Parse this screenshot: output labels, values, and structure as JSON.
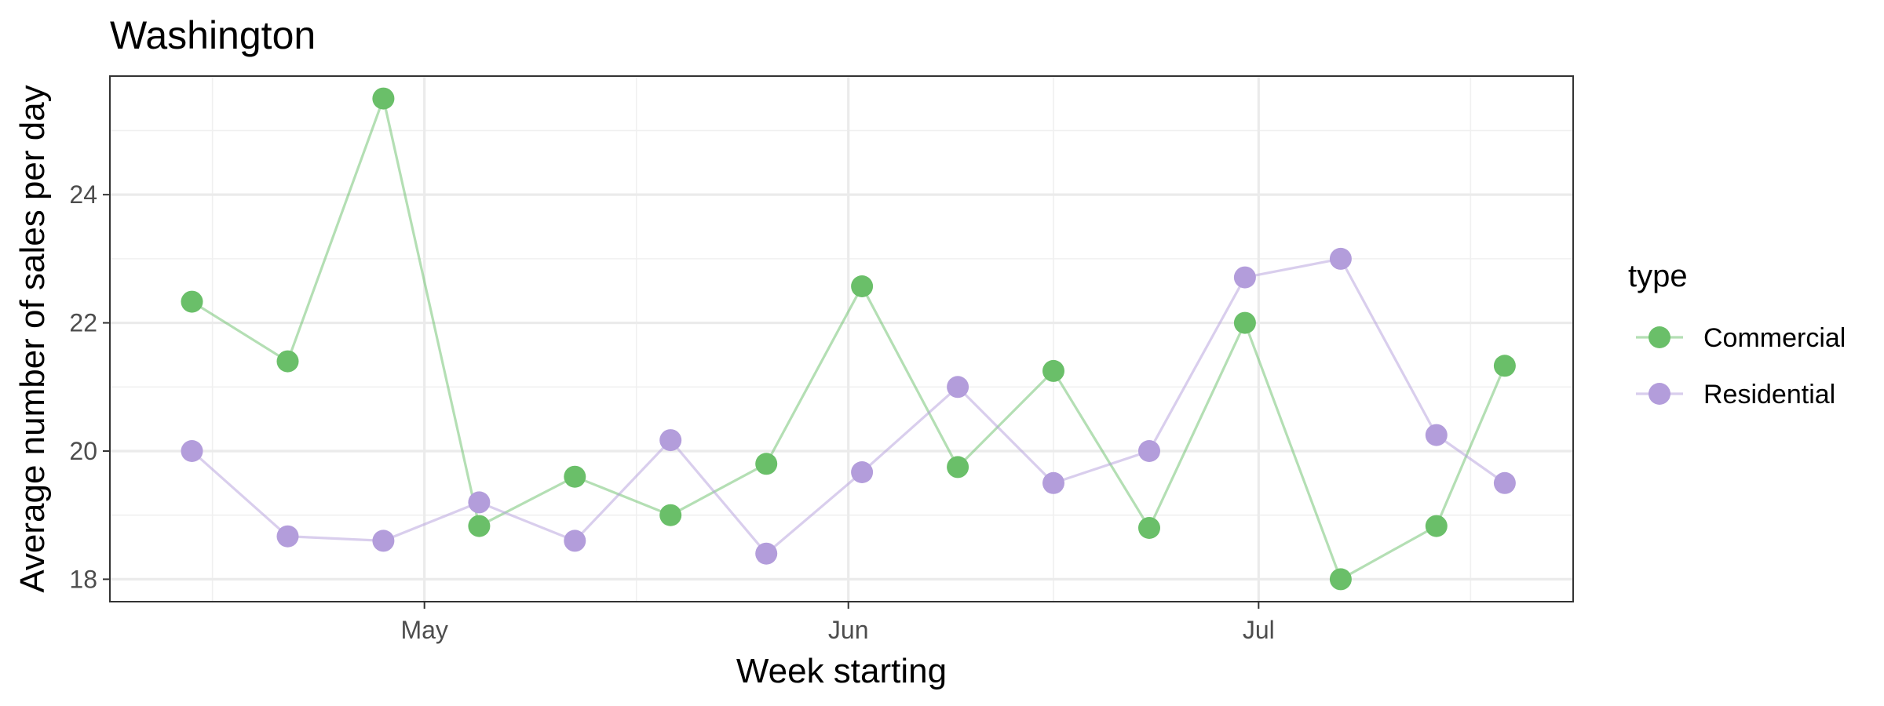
{
  "chart_data": {
    "type": "line",
    "title": "Washington",
    "xlabel": "Week starting",
    "ylabel": "Average number of sales per day",
    "x_ticks": [
      "May",
      "Jun",
      "Jul"
    ],
    "y_ticks": [
      "18",
      "20",
      "22",
      "24"
    ],
    "x_tick_dates": [
      "2019-05-01",
      "2019-06-01",
      "2019-07-01"
    ],
    "xlim": [
      "2019-04-08",
      "2019-07-24"
    ],
    "ylim": [
      17.65,
      25.85
    ],
    "grid": true,
    "legend_title": "type",
    "legend_position": "right",
    "series": [
      {
        "name": "Commercial",
        "color": "#6abf69",
        "x": [
          "2019-04-14",
          "2019-04-21",
          "2019-04-28",
          "2019-05-05",
          "2019-05-12",
          "2019-05-19",
          "2019-05-26",
          "2019-06-02",
          "2019-06-09",
          "2019-06-16",
          "2019-06-23",
          "2019-06-30",
          "2019-07-07",
          "2019-07-14",
          "2019-07-19"
        ],
        "y": [
          22.33,
          21.4,
          25.5,
          18.83,
          19.6,
          19.0,
          19.8,
          22.57,
          19.75,
          21.25,
          18.8,
          22.0,
          18.0,
          18.83,
          21.33
        ]
      },
      {
        "name": "Residential",
        "color": "#b39ddb",
        "x": [
          "2019-04-14",
          "2019-04-21",
          "2019-04-28",
          "2019-05-05",
          "2019-05-12",
          "2019-05-19",
          "2019-05-26",
          "2019-06-02",
          "2019-06-09",
          "2019-06-16",
          "2019-06-23",
          "2019-06-30",
          "2019-07-07",
          "2019-07-14",
          "2019-07-19"
        ],
        "y": [
          20.0,
          18.67,
          18.6,
          19.2,
          18.6,
          20.17,
          18.4,
          19.67,
          21.0,
          19.5,
          20.0,
          22.71,
          23.0,
          20.25,
          19.5
        ]
      }
    ]
  }
}
